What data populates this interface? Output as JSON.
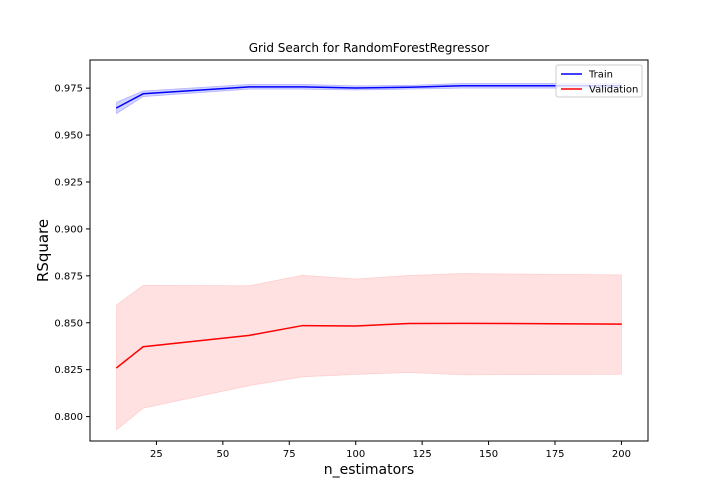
{
  "chart_data": {
    "type": "line",
    "title": "Grid Search for RandomForestRegressor",
    "xlabel": "n_estimators",
    "ylabel": "RSquare",
    "xlim": [
      0,
      210
    ],
    "ylim": [
      0.787,
      0.99
    ],
    "xticks": [
      25,
      50,
      75,
      100,
      125,
      150,
      175,
      200
    ],
    "yticks": [
      0.8,
      0.825,
      0.85,
      0.875,
      0.9,
      0.925,
      0.95,
      0.975
    ],
    "xtick_labels": [
      "25",
      "50",
      "75",
      "100",
      "125",
      "150",
      "175",
      "200"
    ],
    "ytick_labels": [
      "0.800",
      "0.825",
      "0.850",
      "0.875",
      "0.900",
      "0.925",
      "0.950",
      "0.975"
    ],
    "legend_position": "top-right",
    "grid": false,
    "x": [
      10,
      20,
      60,
      80,
      100,
      120,
      140,
      200
    ],
    "series": [
      {
        "name": "Train",
        "color": "#0000ff",
        "band_color": "#8080ff",
        "values": [
          0.9645,
          0.972,
          0.9757,
          0.9757,
          0.9751,
          0.9755,
          0.9763,
          0.9763
        ],
        "lower": [
          0.9615,
          0.9705,
          0.9745,
          0.9745,
          0.974,
          0.9745,
          0.975,
          0.975
        ],
        "upper": [
          0.9675,
          0.9735,
          0.977,
          0.977,
          0.9762,
          0.9765,
          0.9775,
          0.9775
        ]
      },
      {
        "name": "Validation",
        "color": "#ff0000",
        "band_color": "#ffb0b0",
        "values": [
          0.826,
          0.8372,
          0.8433,
          0.8485,
          0.8483,
          0.8496,
          0.8497,
          0.8493
        ],
        "lower": [
          0.793,
          0.8045,
          0.8165,
          0.8212,
          0.8225,
          0.8235,
          0.8223,
          0.8225
        ],
        "upper": [
          0.8595,
          0.8699,
          0.8697,
          0.8753,
          0.8733,
          0.8752,
          0.8762,
          0.8755
        ]
      }
    ]
  }
}
